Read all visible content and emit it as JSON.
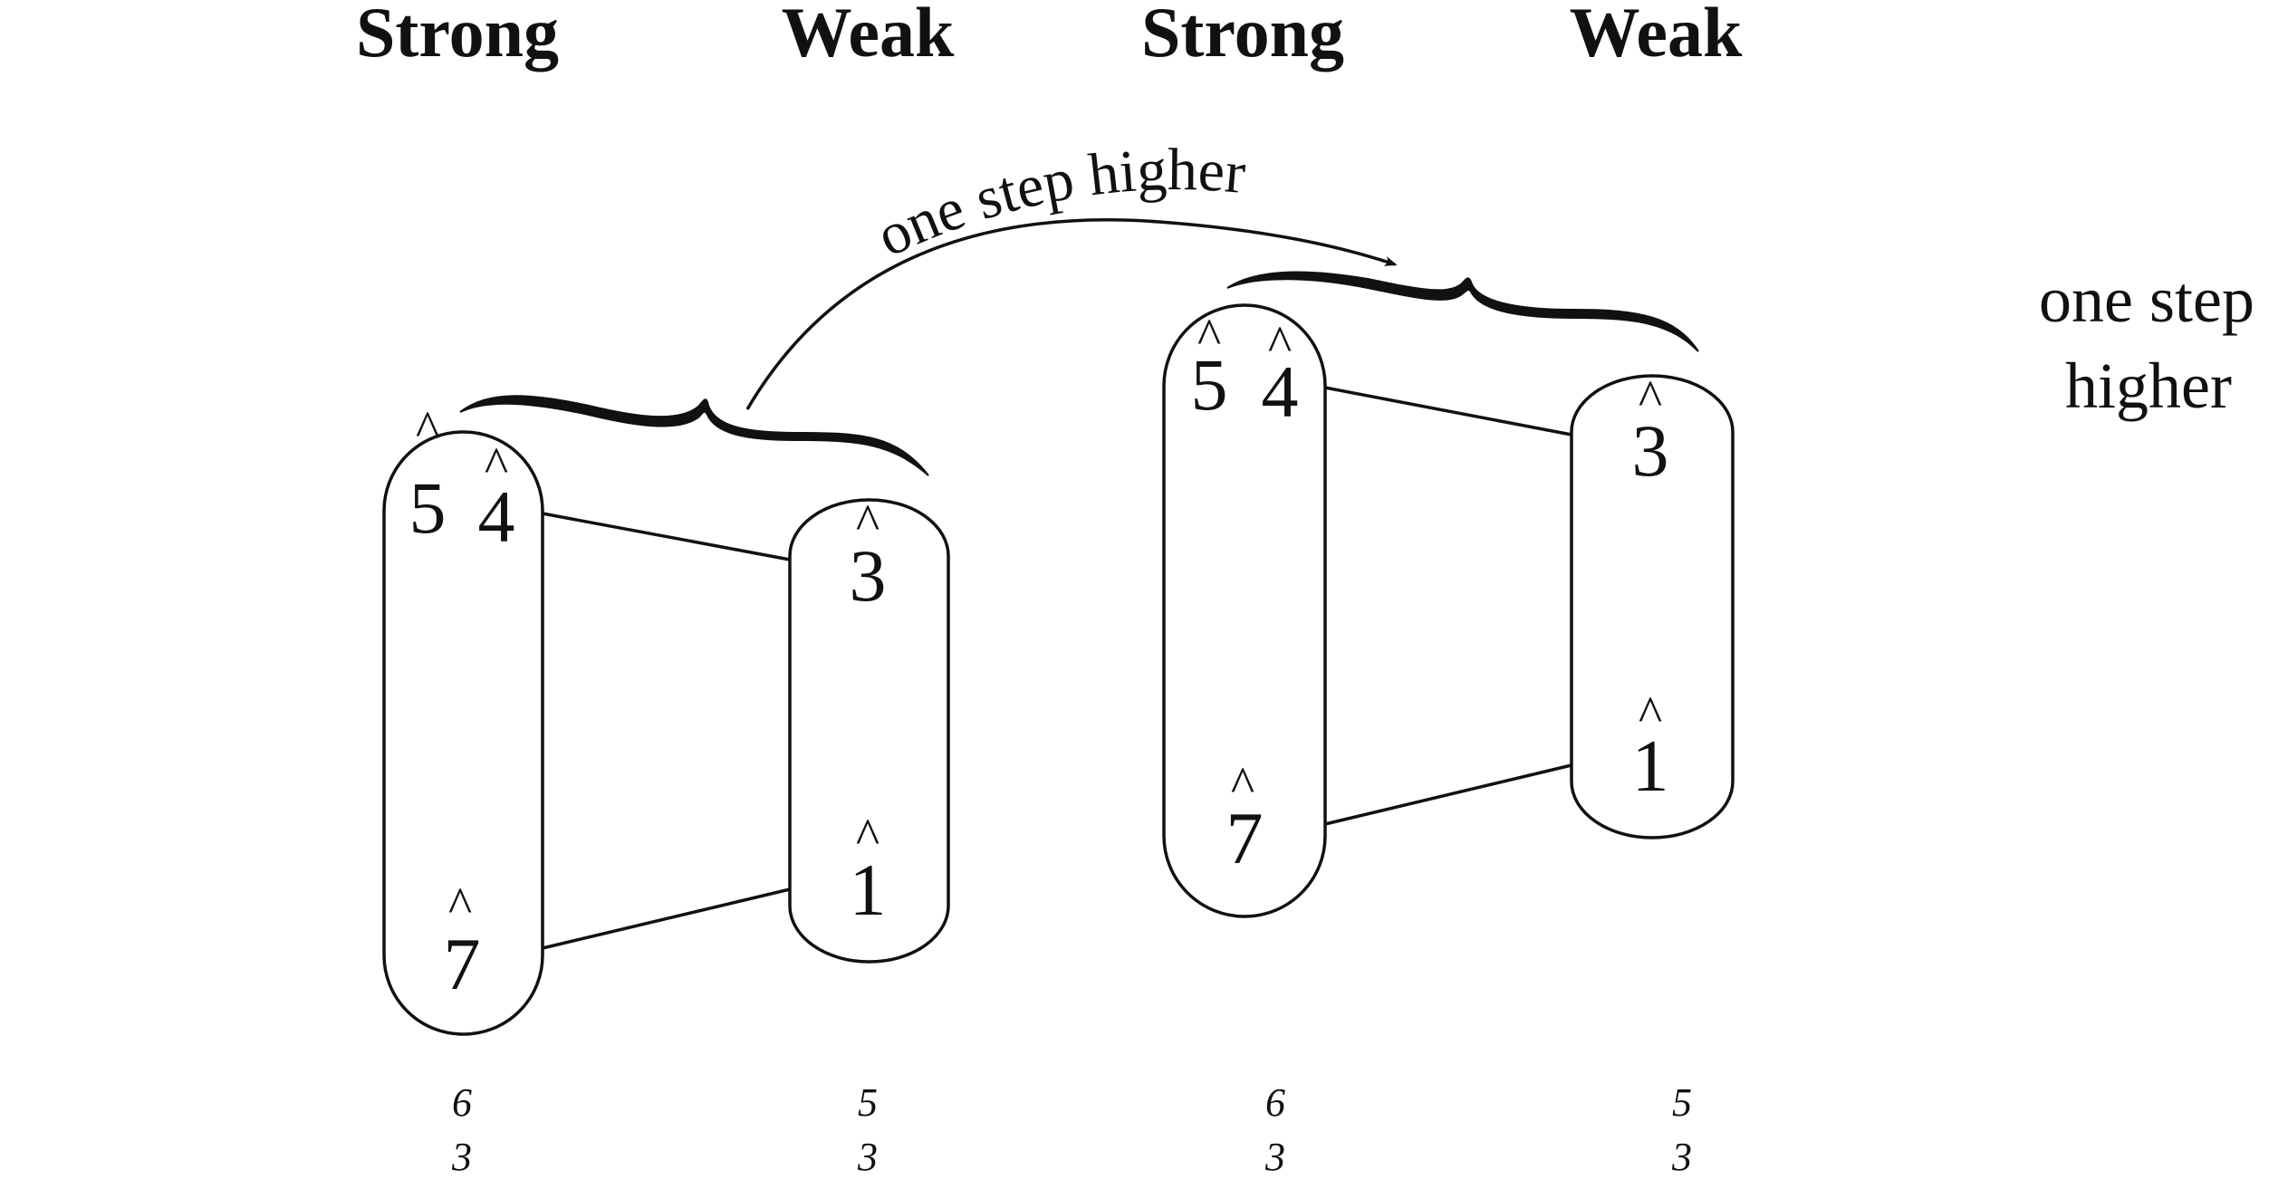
{
  "headers": [
    "Strong",
    "Weak",
    "Strong",
    "Weak"
  ],
  "groups": [
    {
      "strong": {
        "top_degrees": [
          "5",
          "4"
        ],
        "bottom_degree": "7",
        "figures": [
          "6",
          "3"
        ]
      },
      "weak": {
        "top_degree": "3",
        "bottom_degree": "1",
        "figures": [
          "5",
          "3"
        ]
      }
    },
    {
      "strong": {
        "top_degrees": [
          "5",
          "4"
        ],
        "bottom_degree": "7",
        "figures": [
          "6",
          "3"
        ]
      },
      "weak": {
        "top_degree": "3",
        "bottom_degree": "1",
        "figures": [
          "5",
          "3"
        ]
      }
    }
  ],
  "caret": "^",
  "arrow_label": "one step higher",
  "side_note": [
    "one step",
    "higher"
  ]
}
